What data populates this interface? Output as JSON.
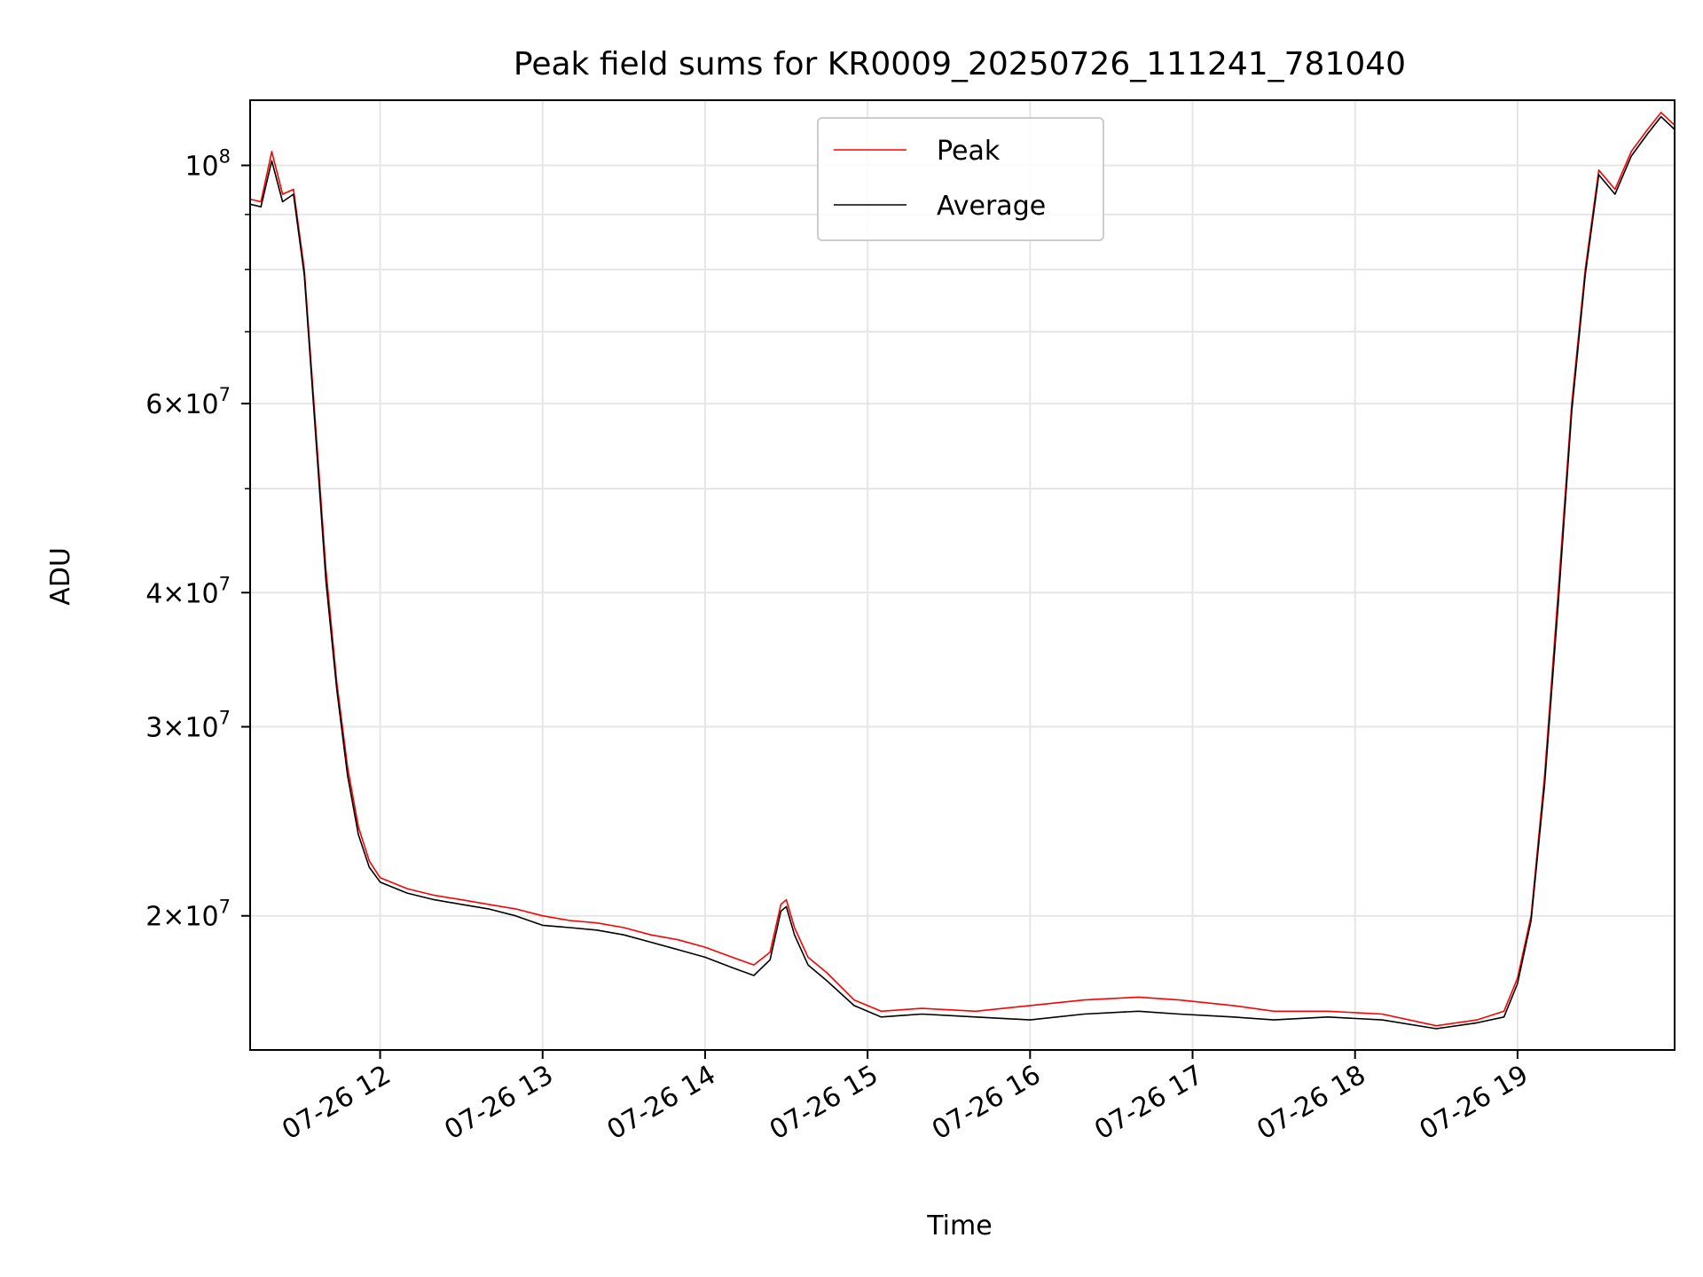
{
  "chart_data": {
    "type": "line",
    "title": "Peak field sums for KR0009_20250726_111241_781040",
    "xlabel": "Time",
    "ylabel": "ADU",
    "yscale": "log",
    "xlim": [
      "2025-07-26 11:12",
      "2025-07-26 19:58"
    ],
    "ylim": [
      15000000,
      115000000
    ],
    "grid": true,
    "legend": "upper center",
    "x_ticks": [
      {
        "value": "2025-07-26 12:00",
        "label": "07-26 12"
      },
      {
        "value": "2025-07-26 13:00",
        "label": "07-26 13"
      },
      {
        "value": "2025-07-26 14:00",
        "label": "07-26 14"
      },
      {
        "value": "2025-07-26 15:00",
        "label": "07-26 15"
      },
      {
        "value": "2025-07-26 16:00",
        "label": "07-26 16"
      },
      {
        "value": "2025-07-26 17:00",
        "label": "07-26 17"
      },
      {
        "value": "2025-07-26 18:00",
        "label": "07-26 18"
      },
      {
        "value": "2025-07-26 19:00",
        "label": "07-26 19"
      }
    ],
    "y_ticks": [
      {
        "value": 20000000,
        "base": "2",
        "exp": "7"
      },
      {
        "value": 30000000,
        "base": "3",
        "exp": "7"
      },
      {
        "value": 40000000,
        "base": "4",
        "exp": "7"
      },
      {
        "value": 60000000,
        "base": "6",
        "exp": "7"
      },
      {
        "value": 100000000,
        "base": "",
        "exp": "8"
      }
    ],
    "y_minor": [
      50000000,
      70000000,
      80000000,
      90000000
    ],
    "series": [
      {
        "name": "Peak",
        "color": "#ff0000",
        "x": [
          "2025-07-26 11:12",
          "2025-07-26 11:16",
          "2025-07-26 11:20",
          "2025-07-26 11:24",
          "2025-07-26 11:28",
          "2025-07-26 11:32",
          "2025-07-26 11:36",
          "2025-07-26 11:40",
          "2025-07-26 11:44",
          "2025-07-26 11:48",
          "2025-07-26 11:52",
          "2025-07-26 11:56",
          "2025-07-26 12:00",
          "2025-07-26 12:10",
          "2025-07-26 12:20",
          "2025-07-26 12:30",
          "2025-07-26 12:40",
          "2025-07-26 12:50",
          "2025-07-26 13:00",
          "2025-07-26 13:10",
          "2025-07-26 13:20",
          "2025-07-26 13:30",
          "2025-07-26 13:40",
          "2025-07-26 13:50",
          "2025-07-26 14:00",
          "2025-07-26 14:10",
          "2025-07-26 14:18",
          "2025-07-26 14:24",
          "2025-07-26 14:28",
          "2025-07-26 14:30",
          "2025-07-26 14:33",
          "2025-07-26 14:38",
          "2025-07-26 14:45",
          "2025-07-26 14:55",
          "2025-07-26 15:05",
          "2025-07-26 15:20",
          "2025-07-26 15:40",
          "2025-07-26 16:00",
          "2025-07-26 16:20",
          "2025-07-26 16:40",
          "2025-07-26 16:55",
          "2025-07-26 17:15",
          "2025-07-26 17:30",
          "2025-07-26 17:50",
          "2025-07-26 18:10",
          "2025-07-26 18:30",
          "2025-07-26 18:45",
          "2025-07-26 18:55",
          "2025-07-26 19:00",
          "2025-07-26 19:05",
          "2025-07-26 19:10",
          "2025-07-26 19:15",
          "2025-07-26 19:20",
          "2025-07-26 19:25",
          "2025-07-26 19:30",
          "2025-07-26 19:36",
          "2025-07-26 19:42",
          "2025-07-26 19:48",
          "2025-07-26 19:53",
          "2025-07-26 19:58"
        ],
        "y": [
          93000000,
          92500000,
          103000000,
          94000000,
          95000000,
          80000000,
          58000000,
          42000000,
          33000000,
          27500000,
          24200000,
          22500000,
          21700000,
          21200000,
          20900000,
          20700000,
          20500000,
          20300000,
          20000000,
          19800000,
          19700000,
          19500000,
          19200000,
          19000000,
          18700000,
          18300000,
          18000000,
          18500000,
          20500000,
          20700000,
          19500000,
          18300000,
          17700000,
          16700000,
          16300000,
          16400000,
          16300000,
          16500000,
          16700000,
          16800000,
          16700000,
          16500000,
          16300000,
          16300000,
          16200000,
          15800000,
          16000000,
          16300000,
          17500000,
          20000000,
          27000000,
          40000000,
          60000000,
          80000000,
          99000000,
          95000000,
          103000000,
          108000000,
          112000000,
          109000000
        ]
      },
      {
        "name": "Average",
        "color": "#000000",
        "x": [
          "2025-07-26 11:12",
          "2025-07-26 11:16",
          "2025-07-26 11:20",
          "2025-07-26 11:24",
          "2025-07-26 11:28",
          "2025-07-26 11:32",
          "2025-07-26 11:36",
          "2025-07-26 11:40",
          "2025-07-26 11:44",
          "2025-07-26 11:48",
          "2025-07-26 11:52",
          "2025-07-26 11:56",
          "2025-07-26 12:00",
          "2025-07-26 12:10",
          "2025-07-26 12:20",
          "2025-07-26 12:30",
          "2025-07-26 12:40",
          "2025-07-26 12:50",
          "2025-07-26 13:00",
          "2025-07-26 13:10",
          "2025-07-26 13:20",
          "2025-07-26 13:30",
          "2025-07-26 13:40",
          "2025-07-26 13:50",
          "2025-07-26 14:00",
          "2025-07-26 14:10",
          "2025-07-26 14:18",
          "2025-07-26 14:24",
          "2025-07-26 14:28",
          "2025-07-26 14:30",
          "2025-07-26 14:33",
          "2025-07-26 14:38",
          "2025-07-26 14:45",
          "2025-07-26 14:55",
          "2025-07-26 15:05",
          "2025-07-26 15:20",
          "2025-07-26 15:40",
          "2025-07-26 16:00",
          "2025-07-26 16:20",
          "2025-07-26 16:40",
          "2025-07-26 16:55",
          "2025-07-26 17:15",
          "2025-07-26 17:30",
          "2025-07-26 17:50",
          "2025-07-26 18:10",
          "2025-07-26 18:30",
          "2025-07-26 18:45",
          "2025-07-26 18:55",
          "2025-07-26 19:00",
          "2025-07-26 19:05",
          "2025-07-26 19:10",
          "2025-07-26 19:15",
          "2025-07-26 19:20",
          "2025-07-26 19:25",
          "2025-07-26 19:30",
          "2025-07-26 19:36",
          "2025-07-26 19:42",
          "2025-07-26 19:48",
          "2025-07-26 19:53",
          "2025-07-26 19:58"
        ],
        "y": [
          92000000,
          91500000,
          101000000,
          92500000,
          94000000,
          79000000,
          57000000,
          41000000,
          32500000,
          27000000,
          23800000,
          22200000,
          21500000,
          21000000,
          20700000,
          20500000,
          20300000,
          20000000,
          19600000,
          19500000,
          19400000,
          19200000,
          18900000,
          18600000,
          18300000,
          17900000,
          17600000,
          18200000,
          20200000,
          20400000,
          19200000,
          18000000,
          17400000,
          16500000,
          16100000,
          16200000,
          16100000,
          16000000,
          16200000,
          16300000,
          16200000,
          16100000,
          16000000,
          16100000,
          16000000,
          15700000,
          15900000,
          16100000,
          17300000,
          19800000,
          26500000,
          39000000,
          59000000,
          79000000,
          98000000,
          94000000,
          102000000,
          107000000,
          111000000,
          108000000
        ]
      }
    ]
  }
}
